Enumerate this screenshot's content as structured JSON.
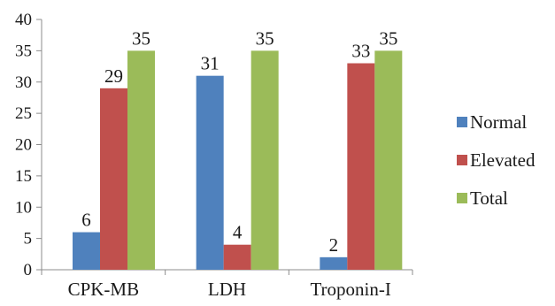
{
  "chart_data": {
    "type": "bar",
    "title": "",
    "xlabel": "",
    "ylabel": "",
    "categories": [
      "CPK-MB",
      "LDH",
      "Troponin-I"
    ],
    "ylim": [
      0,
      40
    ],
    "yticks": [
      0,
      5,
      10,
      15,
      20,
      25,
      30,
      35,
      40
    ],
    "grid": false,
    "legend_position": "right",
    "series": [
      {
        "name": "Normal",
        "color": "#4f81bd",
        "values": [
          6,
          31,
          2
        ]
      },
      {
        "name": "Elevated",
        "color": "#c0504d",
        "values": [
          29,
          4,
          33
        ]
      },
      {
        "name": "Total",
        "color": "#9bbb59",
        "values": [
          35,
          35,
          35
        ]
      }
    ]
  }
}
